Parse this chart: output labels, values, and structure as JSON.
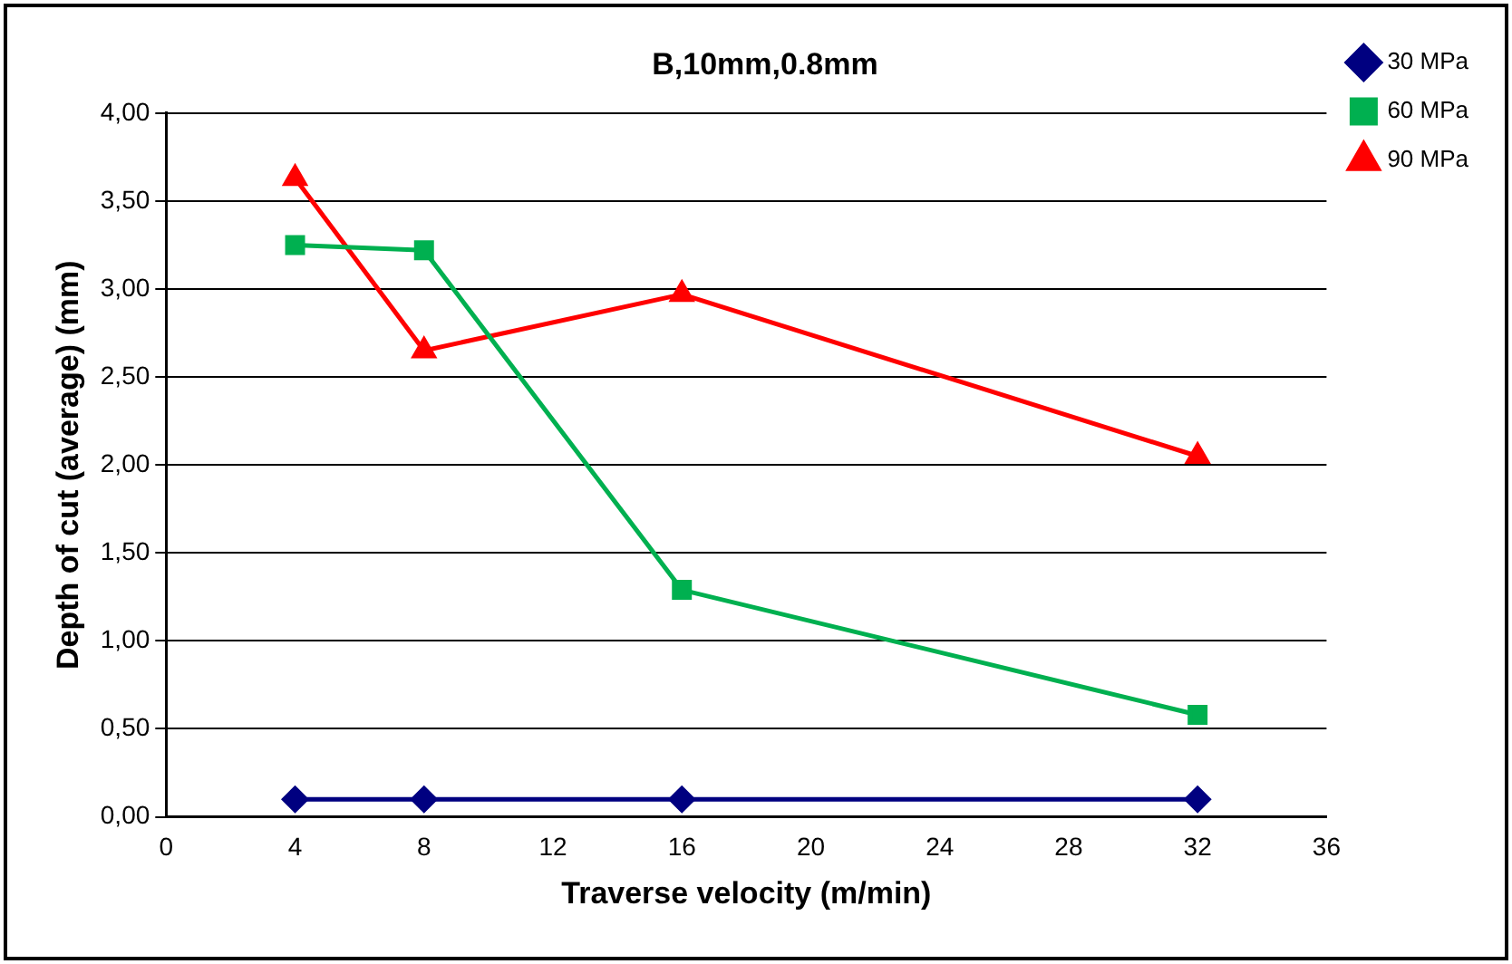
{
  "chart_data": {
    "type": "line",
    "title": "B,10mm,0.8mm",
    "xlabel": "Traverse velocity (m/min)",
    "ylabel": "Depth of cut (average) (mm)",
    "x": [
      4,
      8,
      16,
      32
    ],
    "series": [
      {
        "name": "30 MPa",
        "color": "#000080",
        "marker": "diamond",
        "values": [
          0.1,
          0.1,
          0.1,
          0.1
        ]
      },
      {
        "name": "60 MPa",
        "color": "#00b050",
        "marker": "square",
        "values": [
          3.25,
          3.22,
          1.29,
          0.58
        ]
      },
      {
        "name": "90 MPa",
        "color": "#ff0000",
        "marker": "triangle",
        "values": [
          3.63,
          2.65,
          2.97,
          2.05
        ]
      }
    ],
    "xlim": [
      0,
      36
    ],
    "xticks": [
      0,
      4,
      8,
      12,
      16,
      20,
      24,
      28,
      32,
      36
    ],
    "ylim": [
      0,
      4
    ],
    "yticks": [
      {
        "value": 0,
        "label": "0,00"
      },
      {
        "value": 0.5,
        "label": "0,50"
      },
      {
        "value": 1,
        "label": "1,00"
      },
      {
        "value": 1.5,
        "label": "1,50"
      },
      {
        "value": 2,
        "label": "2,00"
      },
      {
        "value": 2.5,
        "label": "2,50"
      },
      {
        "value": 3,
        "label": "3,00"
      },
      {
        "value": 3.5,
        "label": "3,50"
      },
      {
        "value": 4,
        "label": "4,00"
      }
    ],
    "grid": "y",
    "legend": "top right",
    "line_style": "solid"
  }
}
